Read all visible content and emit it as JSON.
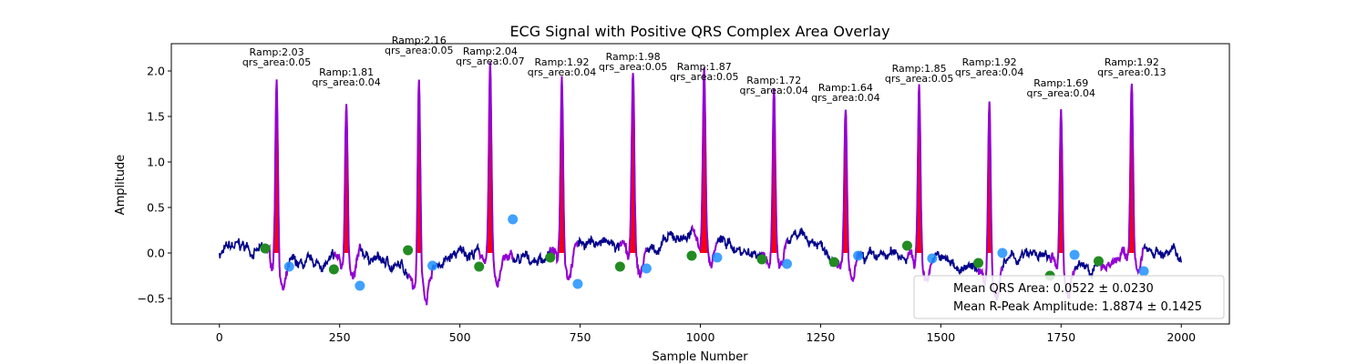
{
  "chart_data": {
    "type": "line",
    "title": "ECG Signal with Positive QRS Complex Area Overlay",
    "xlabel": "Sample Number",
    "ylabel": "Amplitude",
    "xlim": [
      -100,
      2100
    ],
    "ylim": [
      -0.78,
      2.3
    ],
    "xticks": [
      0,
      250,
      500,
      750,
      1000,
      1250,
      1500,
      1750,
      2000
    ],
    "yticks": [
      -0.5,
      0.0,
      0.5,
      1.0,
      1.5,
      2.0
    ],
    "ytick_labels": [
      "−0.5",
      "0.0",
      "0.5",
      "1.0",
      "1.5",
      "2.0"
    ],
    "grid": false,
    "colors": {
      "ecg": "#00008b",
      "qrs": "#9400d3",
      "area_fill": "#ff0000",
      "q_marker": "#228b22",
      "s_marker": "#1e90ff"
    },
    "beats": [
      {
        "r_sample": 119,
        "r_amp": 2.03,
        "qrs_area": 0.05,
        "q": [
          95,
          0.05
        ],
        "s": [
          145,
          -0.15
        ]
      },
      {
        "r_sample": 264,
        "r_amp": 1.81,
        "qrs_area": 0.04,
        "q": [
          238,
          -0.18
        ],
        "s": [
          292,
          -0.36
        ]
      },
      {
        "r_sample": 415,
        "r_amp": 2.16,
        "qrs_area": 0.05,
        "q": [
          392,
          0.03
        ],
        "s": [
          443,
          -0.14
        ]
      },
      {
        "r_sample": 563,
        "r_amp": 2.04,
        "qrs_area": 0.07,
        "q": [
          540,
          -0.15
        ],
        "s": [
          610,
          0.37
        ]
      },
      {
        "r_sample": 712,
        "r_amp": 1.92,
        "qrs_area": 0.04,
        "q": [
          688,
          -0.05
        ],
        "s": [
          745,
          -0.34
        ]
      },
      {
        "r_sample": 860,
        "r_amp": 1.98,
        "qrs_area": 0.05,
        "q": [
          833,
          -0.15
        ],
        "s": [
          888,
          -0.17
        ]
      },
      {
        "r_sample": 1008,
        "r_amp": 1.87,
        "qrs_area": 0.05,
        "q": [
          982,
          -0.03
        ],
        "s": [
          1035,
          -0.05
        ]
      },
      {
        "r_sample": 1153,
        "r_amp": 1.72,
        "qrs_area": 0.04,
        "q": [
          1128,
          -0.07
        ],
        "s": [
          1180,
          -0.12
        ]
      },
      {
        "r_sample": 1302,
        "r_amp": 1.64,
        "qrs_area": 0.04,
        "q": [
          1278,
          -0.1
        ],
        "s": [
          1328,
          -0.03
        ]
      },
      {
        "r_sample": 1455,
        "r_amp": 1.85,
        "qrs_area": 0.05,
        "q": [
          1430,
          0.08
        ],
        "s": [
          1482,
          -0.06
        ]
      },
      {
        "r_sample": 1601,
        "r_amp": 1.92,
        "qrs_area": 0.04,
        "q": [
          1578,
          -0.11
        ],
        "s": [
          1628,
          0.0
        ]
      },
      {
        "r_sample": 1750,
        "r_amp": 1.69,
        "qrs_area": 0.04,
        "q": [
          1727,
          -0.25
        ],
        "s": [
          1778,
          -0.02
        ]
      },
      {
        "r_sample": 1897,
        "r_amp": 1.92,
        "qrs_area": 0.13,
        "q": [
          1828,
          -0.09
        ],
        "s": [
          1922,
          -0.2
        ]
      }
    ],
    "annotation_labels": [
      {
        "ramp": "Ramp:2.03",
        "area": "qrs_area:0.05"
      },
      {
        "ramp": "Ramp:1.81",
        "area": "qrs_area:0.04"
      },
      {
        "ramp": "Ramp:2.16",
        "area": "qrs_area:0.05"
      },
      {
        "ramp": "Ramp:2.04",
        "area": "qrs_area:0.07"
      },
      {
        "ramp": "Ramp:1.92",
        "area": "qrs_area:0.04"
      },
      {
        "ramp": "Ramp:1.98",
        "area": "qrs_area:0.05"
      },
      {
        "ramp": "Ramp:1.87",
        "area": "qrs_area:0.05"
      },
      {
        "ramp": "Ramp:1.72",
        "area": "qrs_area:0.04"
      },
      {
        "ramp": "Ramp:1.64",
        "area": "qrs_area:0.04"
      },
      {
        "ramp": "Ramp:1.85",
        "area": "qrs_area:0.05"
      },
      {
        "ramp": "Ramp:1.92",
        "area": "qrs_area:0.04"
      },
      {
        "ramp": "Ramp:1.69",
        "area": "qrs_area:0.04"
      },
      {
        "ramp": "Ramp:1.92",
        "area": "qrs_area:0.13"
      }
    ],
    "legend": {
      "placement": "lower-right",
      "entries": [
        "Mean QRS Area: 0.0522 ± 0.0230",
        "Mean R-Peak Amplitude: 1.8874 ± 0.1425"
      ]
    }
  }
}
